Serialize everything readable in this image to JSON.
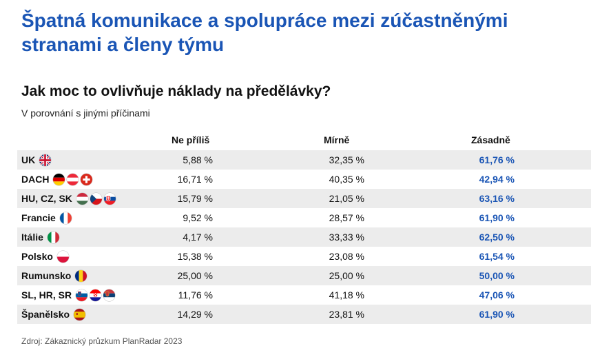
{
  "title": "Špatná komunikace a spolupráce mezi zúčastněnými stranami a členy týmu",
  "chart_title": "Jak moc to ovlivňuje náklady na předělávky?",
  "chart_subtitle": "V porovnání s jinými příčinami",
  "source": "Zdroj: Zákaznický průzkum PlanRadar 2023",
  "colors": {
    "title": "#1a55b5",
    "highlight": "#1a55b5",
    "row_shade": "#ececec"
  },
  "chart_data": {
    "type": "table",
    "columns": [
      "Ne příliš",
      "Mírně",
      "Zásadně"
    ],
    "rows": [
      {
        "name": "UK",
        "flags": [
          "uk-flag-icon"
        ],
        "values": [
          "5,88 %",
          "32,35 %",
          "61,76 %"
        ]
      },
      {
        "name": "DACH",
        "flags": [
          "germany-flag-icon",
          "austria-flag-icon",
          "switzerland-flag-icon"
        ],
        "values": [
          "16,71 %",
          "40,35 %",
          "42,94 %"
        ]
      },
      {
        "name": "HU, CZ, SK",
        "flags": [
          "hungary-flag-icon",
          "czech-flag-icon",
          "slovakia-flag-icon"
        ],
        "values": [
          "15,79 %",
          "21,05 %",
          "63,16 %"
        ]
      },
      {
        "name": "Francie",
        "flags": [
          "france-flag-icon"
        ],
        "values": [
          "9,52 %",
          "28,57 %",
          "61,90 %"
        ]
      },
      {
        "name": "Itálie",
        "flags": [
          "italy-flag-icon"
        ],
        "values": [
          "4,17 %",
          "33,33 %",
          "62,50 %"
        ]
      },
      {
        "name": "Polsko",
        "flags": [
          "poland-flag-icon"
        ],
        "values": [
          "15,38 %",
          "23,08 %",
          "61,54 %"
        ]
      },
      {
        "name": "Rumunsko",
        "flags": [
          "romania-flag-icon"
        ],
        "values": [
          "25,00 %",
          "25,00 %",
          "50,00 %"
        ]
      },
      {
        "name": "SL, HR, SR",
        "flags": [
          "slovenia-flag-icon",
          "croatia-flag-icon",
          "serbia-flag-icon"
        ],
        "values": [
          "11,76 %",
          "41,18 %",
          "47,06 %"
        ]
      },
      {
        "name": "Španělsko",
        "flags": [
          "spain-flag-icon"
        ],
        "values": [
          "14,29 %",
          "23,81 %",
          "61,90 %"
        ]
      }
    ]
  }
}
